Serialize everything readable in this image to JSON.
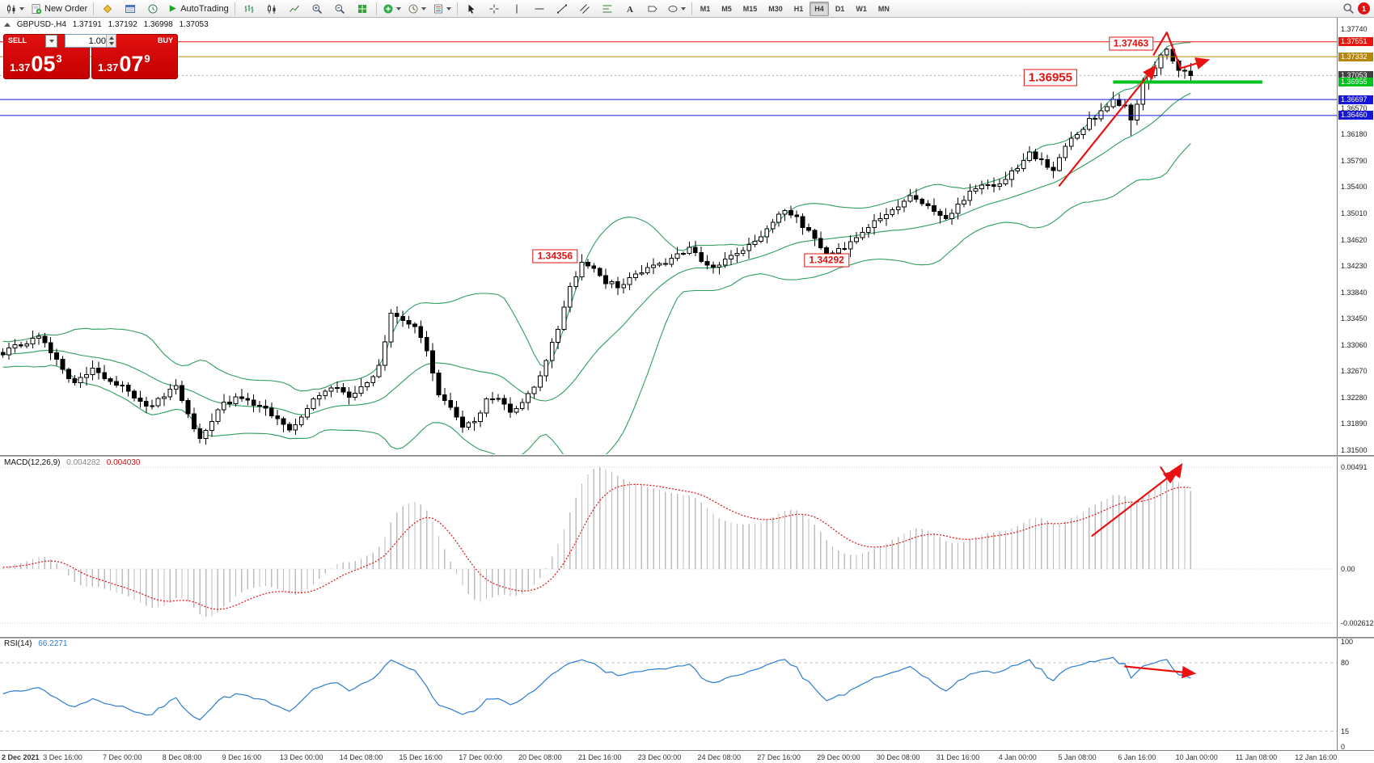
{
  "toolbar": {
    "new_order_label": "New Order",
    "autotrading_label": "AutoTrading",
    "timeframes": [
      "M1",
      "M5",
      "M15",
      "M30",
      "H1",
      "H4",
      "D1",
      "W1",
      "MN"
    ],
    "active_timeframe": "H4",
    "notification_count": "1"
  },
  "one_click": {
    "sell_label": "SELL",
    "buy_label": "BUY",
    "volume": "1.00",
    "sell_price_small": "1.37",
    "sell_price_big": "05",
    "sell_price_sup": "3",
    "buy_price_small": "1.37",
    "buy_price_big": "07",
    "buy_price_sup": "9"
  },
  "chart_data": {
    "type": "candlestick",
    "symbol_period": "GBPUSD-,H4",
    "ohlc": {
      "open": "1.37191",
      "high": "1.37192",
      "low": "1.36998",
      "close": "1.37053"
    },
    "annotation_color": "#e81212",
    "candle_count": 200,
    "total_slots": 224,
    "price_axis": {
      "ticks": [
        "1.37740",
        "1.36570",
        "1.36180",
        "1.35790",
        "1.35400",
        "1.35010",
        "1.34620",
        "1.34230",
        "1.33840",
        "1.33450",
        "1.33060",
        "1.32670",
        "1.32280",
        "1.31890",
        "1.31500"
      ],
      "special_labels": [
        {
          "text": "1.37551",
          "bg": "#e8160c"
        },
        {
          "text": "1.37332",
          "bg": "#b8860b"
        },
        {
          "text": "1.37053",
          "bg": "#404040"
        },
        {
          "text": "1.36955",
          "bg": "#00c21f"
        },
        {
          "text": "1.36697",
          "bg": "#1616d8"
        },
        {
          "text": "1.36460",
          "bg": "#1616d8"
        }
      ]
    },
    "hlines": [
      {
        "price": 1.37551,
        "color": "#e8160c",
        "width": 1,
        "style": "solid"
      },
      {
        "price": 1.37332,
        "color": "#b8860b",
        "width": 1,
        "style": "solid"
      },
      {
        "price": 1.37053,
        "color": "#a8a8a8",
        "width": 1,
        "style": "dotted"
      },
      {
        "price": 1.36955,
        "color": "#00c21f",
        "width": 4,
        "style": "solid",
        "from_slot": 186,
        "to_slot": 211
      },
      {
        "price": 1.36697,
        "color": "#1616d8",
        "width": 1,
        "style": "solid"
      },
      {
        "price": 1.3646,
        "color": "#1616d8",
        "width": 1,
        "style": "solid"
      }
    ],
    "callouts": [
      {
        "text": "1.37463",
        "slot": 189,
        "price": 1.3753,
        "size": "normal"
      },
      {
        "text": "1.36955",
        "slot": 175.5,
        "price": 1.3702,
        "size": "large"
      },
      {
        "text": "1.34356",
        "slot": 92.5,
        "price": 1.3437,
        "size": "normal"
      },
      {
        "text": "1.34292",
        "slot": 138,
        "price": 1.3432,
        "size": "normal"
      }
    ],
    "arrows": {
      "main": [
        {
          "points": [
            [
              177,
              1.3542
            ],
            [
              193,
              1.3718
            ]
          ],
          "head": true
        },
        {
          "points": [
            [
              192.8,
              1.3736
            ],
            [
              195.0,
              1.3769
            ],
            [
              197.3,
              1.3716
            ],
            [
              201.8,
              1.3728
            ]
          ],
          "head": true
        }
      ],
      "macd": [
        {
          "points": [
            [
              182.5,
              0.0016
            ],
            [
              196.5,
              0.0047
            ]
          ],
          "head": true
        },
        {
          "points": [
            [
              194,
              0.0049
            ],
            [
              195.6,
              0.0042
            ],
            [
              197.4,
              0.005
            ]
          ],
          "head": true
        }
      ],
      "rsi": [
        {
          "points": [
            [
              188,
              76.5
            ],
            [
              199.5,
              70
            ]
          ],
          "head": true
        }
      ]
    },
    "time_axis": {
      "label_every": 10,
      "labels": [
        "2 Dec 2021",
        "3 Dec 16:00",
        "7 Dec 00:00",
        "8 Dec 08:00",
        "9 Dec 16:00",
        "13 Dec 00:00",
        "14 Dec 08:00",
        "15 Dec 16:00",
        "17 Dec 00:00",
        "20 Dec 08:00",
        "21 Dec 16:00",
        "23 Dec 00:00",
        "24 Dec 08:00",
        "27 Dec 16:00",
        "29 Dec 00:00",
        "30 Dec 08:00",
        "31 Dec 16:00",
        "4 Jan 00:00",
        "5 Jan 08:00",
        "6 Jan 16:00",
        "10 Jan 00:00",
        "11 Jan 08:00",
        "12 Jan 16:00"
      ]
    },
    "price_path": [
      [
        0,
        1.3295
      ],
      [
        3,
        1.3308
      ],
      [
        6,
        1.3318
      ],
      [
        9,
        1.3282
      ],
      [
        12,
        1.3248
      ],
      [
        15,
        1.327
      ],
      [
        18,
        1.3252
      ],
      [
        21,
        1.324
      ],
      [
        24,
        1.3212
      ],
      [
        27,
        1.323
      ],
      [
        29,
        1.3248
      ],
      [
        31,
        1.32
      ],
      [
        33,
        1.3168
      ],
      [
        35,
        1.3195
      ],
      [
        37,
        1.3218
      ],
      [
        40,
        1.323
      ],
      [
        43,
        1.3215
      ],
      [
        46,
        1.3196
      ],
      [
        48,
        1.318
      ],
      [
        50,
        1.3202
      ],
      [
        52,
        1.3225
      ],
      [
        55,
        1.3245
      ],
      [
        58,
        1.323
      ],
      [
        61,
        1.3252
      ],
      [
        63,
        1.3272
      ],
      [
        65,
        1.3355
      ],
      [
        67,
        1.3345
      ],
      [
        69,
        1.3336
      ],
      [
        71,
        1.3295
      ],
      [
        73,
        1.3235
      ],
      [
        75,
        1.321
      ],
      [
        77,
        1.3188
      ],
      [
        79,
        1.3196
      ],
      [
        81,
        1.3222
      ],
      [
        83,
        1.323
      ],
      [
        85,
        1.3205
      ],
      [
        87,
        1.3218
      ],
      [
        89,
        1.3242
      ],
      [
        91,
        1.3282
      ],
      [
        93,
        1.3332
      ],
      [
        95,
        1.3392
      ],
      [
        97,
        1.3428
      ],
      [
        99,
        1.3418
      ],
      [
        101,
        1.34
      ],
      [
        103,
        1.3392
      ],
      [
        105,
        1.3406
      ],
      [
        107,
        1.3415
      ],
      [
        109,
        1.3422
      ],
      [
        111,
        1.3428
      ],
      [
        113,
        1.3442
      ],
      [
        115,
        1.3448
      ],
      [
        117,
        1.3432
      ],
      [
        119,
        1.342
      ],
      [
        121,
        1.3434
      ],
      [
        123,
        1.3442
      ],
      [
        125,
        1.3452
      ],
      [
        127,
        1.347
      ],
      [
        129,
        1.349
      ],
      [
        131,
        1.3504
      ],
      [
        133,
        1.3495
      ],
      [
        135,
        1.3472
      ],
      [
        137,
        1.345
      ],
      [
        138,
        1.3434
      ],
      [
        140,
        1.3446
      ],
      [
        142,
        1.3458
      ],
      [
        144,
        1.3472
      ],
      [
        146,
        1.349
      ],
      [
        148,
        1.3502
      ],
      [
        150,
        1.3514
      ],
      [
        152,
        1.3524
      ],
      [
        154,
        1.3518
      ],
      [
        156,
        1.3504
      ],
      [
        158,
        1.3492
      ],
      [
        160,
        1.3512
      ],
      [
        162,
        1.353
      ],
      [
        164,
        1.3546
      ],
      [
        166,
        1.354
      ],
      [
        168,
        1.3552
      ],
      [
        170,
        1.357
      ],
      [
        172,
        1.3588
      ],
      [
        174,
        1.358
      ],
      [
        176,
        1.3566
      ],
      [
        178,
        1.3602
      ],
      [
        180,
        1.362
      ],
      [
        182,
        1.3638
      ],
      [
        184,
        1.3652
      ],
      [
        186,
        1.3666
      ],
      [
        188,
        1.366
      ],
      [
        189,
        1.3638
      ],
      [
        190,
        1.3666
      ],
      [
        191,
        1.369
      ],
      [
        192,
        1.3706
      ],
      [
        193,
        1.372
      ],
      [
        194,
        1.3736
      ],
      [
        195,
        1.3744
      ],
      [
        196,
        1.3724
      ],
      [
        197,
        1.3712
      ],
      [
        199,
        1.3705
      ]
    ],
    "overrides": [
      {
        "slot": 33,
        "low": 1.316
      },
      {
        "slot": 189,
        "low": 1.3616
      },
      {
        "slot": 195,
        "high": 1.37463
      },
      {
        "slot": 199,
        "close": 1.37053
      }
    ],
    "indicators": {
      "bollinger": {
        "period": 20,
        "deviation": 2,
        "color": "#2f9e5f"
      },
      "macd": {
        "label": "MACD(12,26,9)",
        "value": "0.004282",
        "signal_value": "0.004030",
        "hist_color": "#bdbdbd",
        "signal_color": "#e01010",
        "axis_labels": [
          "0.00491",
          "0.00",
          "-0.002612"
        ]
      },
      "rsi": {
        "label": "RSI(14)",
        "value": "66.2271",
        "color": "#2b7cd3",
        "axis_labels": [
          "100",
          "80",
          "15",
          "0"
        ],
        "levels": [
          80,
          15
        ]
      }
    }
  }
}
